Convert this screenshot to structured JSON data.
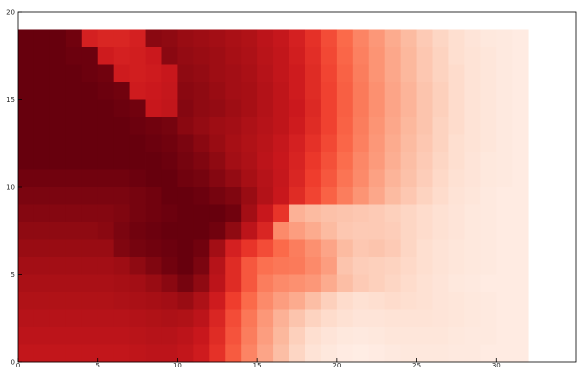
{
  "chart_data": {
    "type": "heatmap",
    "title": "",
    "xlabel": "",
    "ylabel": "",
    "colormap": "Reds",
    "color_scale": [
      "#fff5f0",
      "#fee0d2",
      "#fcbba1",
      "#fc9272",
      "#fb6a4a",
      "#ef3b2c",
      "#cb181d",
      "#a50f15",
      "#67000d"
    ],
    "value_range": [
      0,
      1
    ],
    "xlim": [
      0,
      35
    ],
    "ylim": [
      0,
      20
    ],
    "xticks": [
      0,
      5,
      10,
      15,
      20,
      25,
      30
    ],
    "yticks": [
      0,
      5,
      10,
      15,
      20
    ],
    "grid": false,
    "n_cols": 32,
    "n_rows": 19,
    "row_order": "top-to-bottom",
    "values": [
      [
        1.0,
        1.0,
        1.0,
        0.98,
        0.72,
        0.7,
        0.7,
        0.72,
        0.93,
        0.92,
        0.9,
        0.89,
        0.88,
        0.86,
        0.84,
        0.8,
        0.77,
        0.72,
        0.66,
        0.58,
        0.5,
        0.42,
        0.36,
        0.3,
        0.25,
        0.2,
        0.16,
        0.13,
        0.1,
        0.08,
        0.07,
        0.06
      ],
      [
        1.0,
        1.0,
        1.0,
        0.99,
        0.99,
        0.74,
        0.72,
        0.73,
        0.75,
        0.93,
        0.91,
        0.9,
        0.89,
        0.87,
        0.85,
        0.81,
        0.78,
        0.73,
        0.67,
        0.59,
        0.51,
        0.43,
        0.37,
        0.31,
        0.26,
        0.21,
        0.17,
        0.13,
        0.11,
        0.09,
        0.07,
        0.06
      ],
      [
        1.0,
        1.0,
        1.0,
        1.0,
        0.99,
        0.98,
        0.74,
        0.73,
        0.74,
        0.76,
        0.92,
        0.91,
        0.89,
        0.88,
        0.86,
        0.82,
        0.78,
        0.74,
        0.68,
        0.6,
        0.52,
        0.44,
        0.37,
        0.31,
        0.26,
        0.21,
        0.17,
        0.14,
        0.11,
        0.09,
        0.07,
        0.06
      ],
      [
        1.0,
        1.0,
        1.0,
        1.0,
        1.0,
        0.99,
        0.98,
        0.74,
        0.75,
        0.77,
        0.93,
        0.92,
        0.9,
        0.88,
        0.87,
        0.83,
        0.79,
        0.74,
        0.68,
        0.61,
        0.53,
        0.45,
        0.38,
        0.32,
        0.27,
        0.22,
        0.18,
        0.14,
        0.11,
        0.09,
        0.07,
        0.06
      ],
      [
        1.0,
        1.0,
        1.0,
        1.0,
        1.0,
        1.0,
        0.99,
        0.98,
        0.76,
        0.78,
        0.94,
        0.92,
        0.91,
        0.89,
        0.87,
        0.83,
        0.79,
        0.75,
        0.69,
        0.61,
        0.53,
        0.45,
        0.38,
        0.32,
        0.27,
        0.22,
        0.18,
        0.14,
        0.11,
        0.09,
        0.07,
        0.06
      ],
      [
        1.0,
        1.0,
        1.0,
        1.0,
        1.0,
        1.0,
        1.0,
        0.99,
        0.98,
        0.97,
        0.93,
        0.91,
        0.89,
        0.88,
        0.85,
        0.82,
        0.79,
        0.74,
        0.68,
        0.61,
        0.52,
        0.44,
        0.37,
        0.31,
        0.26,
        0.22,
        0.17,
        0.14,
        0.11,
        0.09,
        0.07,
        0.06
      ],
      [
        1.0,
        1.0,
        1.0,
        1.0,
        1.0,
        1.0,
        1.0,
        1.0,
        0.99,
        0.98,
        0.96,
        0.93,
        0.9,
        0.87,
        0.84,
        0.81,
        0.77,
        0.72,
        0.66,
        0.59,
        0.51,
        0.43,
        0.36,
        0.3,
        0.25,
        0.21,
        0.17,
        0.13,
        0.11,
        0.09,
        0.07,
        0.06
      ],
      [
        1.0,
        1.0,
        1.0,
        1.0,
        1.0,
        1.0,
        1.0,
        1.0,
        1.0,
        0.99,
        0.97,
        0.95,
        0.92,
        0.88,
        0.85,
        0.8,
        0.76,
        0.71,
        0.64,
        0.57,
        0.49,
        0.41,
        0.35,
        0.29,
        0.24,
        0.2,
        0.16,
        0.13,
        0.1,
        0.08,
        0.07,
        0.06
      ],
      [
        0.98,
        0.98,
        0.98,
        0.98,
        0.98,
        0.98,
        0.98,
        0.99,
        1.0,
        1.0,
        0.98,
        0.97,
        0.94,
        0.91,
        0.87,
        0.82,
        0.77,
        0.7,
        0.62,
        0.55,
        0.47,
        0.4,
        0.33,
        0.27,
        0.23,
        0.19,
        0.15,
        0.12,
        0.1,
        0.08,
        0.07,
        0.06
      ],
      [
        0.96,
        0.96,
        0.96,
        0.96,
        0.96,
        0.96,
        0.96,
        0.97,
        0.98,
        1.0,
        1.0,
        0.99,
        0.97,
        0.95,
        0.9,
        0.83,
        0.76,
        0.68,
        0.6,
        0.52,
        0.44,
        0.37,
        0.31,
        0.25,
        0.21,
        0.17,
        0.14,
        0.11,
        0.09,
        0.07,
        0.06,
        0.06
      ],
      [
        0.94,
        0.94,
        0.94,
        0.94,
        0.94,
        0.94,
        0.95,
        0.97,
        0.98,
        0.99,
        1.0,
        1.0,
        1.0,
        0.98,
        0.88,
        0.76,
        0.65,
        0.28,
        0.25,
        0.23,
        0.22,
        0.21,
        0.2,
        0.18,
        0.16,
        0.14,
        0.12,
        0.1,
        0.08,
        0.07,
        0.06,
        0.06
      ],
      [
        0.92,
        0.92,
        0.92,
        0.92,
        0.92,
        0.93,
        0.96,
        0.98,
        0.99,
        1.0,
        1.0,
        1.0,
        0.98,
        0.92,
        0.8,
        0.7,
        0.4,
        0.34,
        0.3,
        0.25,
        0.21,
        0.2,
        0.2,
        0.19,
        0.16,
        0.14,
        0.12,
        0.1,
        0.08,
        0.07,
        0.06,
        0.06
      ],
      [
        0.9,
        0.9,
        0.9,
        0.9,
        0.9,
        0.9,
        0.95,
        0.97,
        0.98,
        0.99,
        1.0,
        0.98,
        0.88,
        0.72,
        0.65,
        0.58,
        0.5,
        0.44,
        0.38,
        0.32,
        0.25,
        0.21,
        0.22,
        0.2,
        0.16,
        0.13,
        0.11,
        0.09,
        0.08,
        0.07,
        0.06,
        0.06
      ],
      [
        0.88,
        0.88,
        0.88,
        0.88,
        0.88,
        0.88,
        0.89,
        0.92,
        0.95,
        0.98,
        1.0,
        0.96,
        0.82,
        0.68,
        0.55,
        0.48,
        0.46,
        0.45,
        0.4,
        0.34,
        0.22,
        0.19,
        0.18,
        0.17,
        0.15,
        0.13,
        0.11,
        0.09,
        0.08,
        0.07,
        0.06,
        0.06
      ],
      [
        0.86,
        0.86,
        0.86,
        0.86,
        0.86,
        0.86,
        0.87,
        0.88,
        0.9,
        0.93,
        0.97,
        0.92,
        0.8,
        0.68,
        0.55,
        0.44,
        0.4,
        0.38,
        0.36,
        0.3,
        0.24,
        0.2,
        0.18,
        0.16,
        0.14,
        0.12,
        0.1,
        0.08,
        0.07,
        0.06,
        0.06,
        0.06
      ],
      [
        0.84,
        0.84,
        0.84,
        0.84,
        0.84,
        0.84,
        0.85,
        0.86,
        0.87,
        0.88,
        0.9,
        0.85,
        0.74,
        0.62,
        0.5,
        0.4,
        0.34,
        0.3,
        0.24,
        0.18,
        0.14,
        0.12,
        0.13,
        0.14,
        0.13,
        0.12,
        0.1,
        0.09,
        0.08,
        0.07,
        0.06,
        0.06
      ],
      [
        0.82,
        0.82,
        0.82,
        0.82,
        0.82,
        0.82,
        0.82,
        0.83,
        0.84,
        0.85,
        0.84,
        0.8,
        0.7,
        0.58,
        0.46,
        0.36,
        0.28,
        0.22,
        0.17,
        0.14,
        0.12,
        0.1,
        0.1,
        0.11,
        0.11,
        0.11,
        0.1,
        0.09,
        0.08,
        0.07,
        0.06,
        0.06
      ],
      [
        0.8,
        0.8,
        0.8,
        0.8,
        0.8,
        0.8,
        0.8,
        0.81,
        0.82,
        0.82,
        0.8,
        0.76,
        0.68,
        0.56,
        0.44,
        0.34,
        0.26,
        0.18,
        0.13,
        0.1,
        0.08,
        0.07,
        0.08,
        0.09,
        0.09,
        0.09,
        0.09,
        0.08,
        0.07,
        0.07,
        0.06,
        0.06
      ],
      [
        0.78,
        0.78,
        0.78,
        0.78,
        0.78,
        0.78,
        0.78,
        0.79,
        0.8,
        0.8,
        0.78,
        0.74,
        0.66,
        0.54,
        0.42,
        0.32,
        0.24,
        0.16,
        0.11,
        0.08,
        0.06,
        0.05,
        0.06,
        0.07,
        0.08,
        0.08,
        0.08,
        0.07,
        0.07,
        0.06,
        0.06,
        0.06
      ]
    ]
  }
}
